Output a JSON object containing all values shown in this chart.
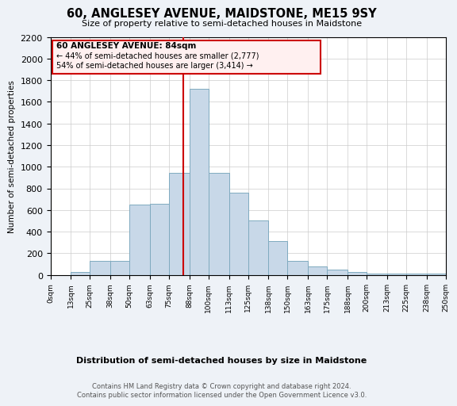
{
  "title": "60, ANGLESEY AVENUE, MAIDSTONE, ME15 9SY",
  "subtitle": "Size of property relative to semi-detached houses in Maidstone",
  "xlabel": "Distribution of semi-detached houses by size in Maidstone",
  "ylabel": "Number of semi-detached properties",
  "footer": "Contains HM Land Registry data © Crown copyright and database right 2024.\nContains public sector information licensed under the Open Government Licence v3.0.",
  "annotation_title": "60 ANGLESEY AVENUE: 84sqm",
  "annotation_line1": "← 44% of semi-detached houses are smaller (2,777)",
  "annotation_line2": "54% of semi-detached houses are larger (3,414) →",
  "property_size": 84,
  "bar_edges": [
    0,
    13,
    25,
    38,
    50,
    63,
    75,
    88,
    100,
    113,
    125,
    138,
    150,
    163,
    175,
    188,
    200,
    213,
    225,
    238,
    250
  ],
  "bar_heights": [
    0,
    25,
    130,
    130,
    650,
    660,
    940,
    1720,
    940,
    760,
    500,
    310,
    130,
    75,
    50,
    25,
    15,
    10,
    10,
    10
  ],
  "bar_color": "#c8d8e8",
  "bar_edge_color": "#7faabf",
  "vline_color": "#cc0000",
  "vline_x": 84,
  "annotation_box_facecolor": "#fff0f0",
  "annotation_box_edgecolor": "#cc0000",
  "tick_labels": [
    "0sqm",
    "13sqm",
    "25sqm",
    "38sqm",
    "50sqm",
    "63sqm",
    "75sqm",
    "88sqm",
    "100sqm",
    "113sqm",
    "125sqm",
    "138sqm",
    "150sqm",
    "163sqm",
    "175sqm",
    "188sqm",
    "200sqm",
    "213sqm",
    "225sqm",
    "238sqm",
    "250sqm"
  ],
  "ylim": [
    0,
    2200
  ],
  "yticks": [
    0,
    200,
    400,
    600,
    800,
    1000,
    1200,
    1400,
    1600,
    1800,
    2000,
    2200
  ],
  "bg_color": "#eef2f7",
  "plot_bg_color": "#ffffff",
  "grid_color": "#cccccc"
}
